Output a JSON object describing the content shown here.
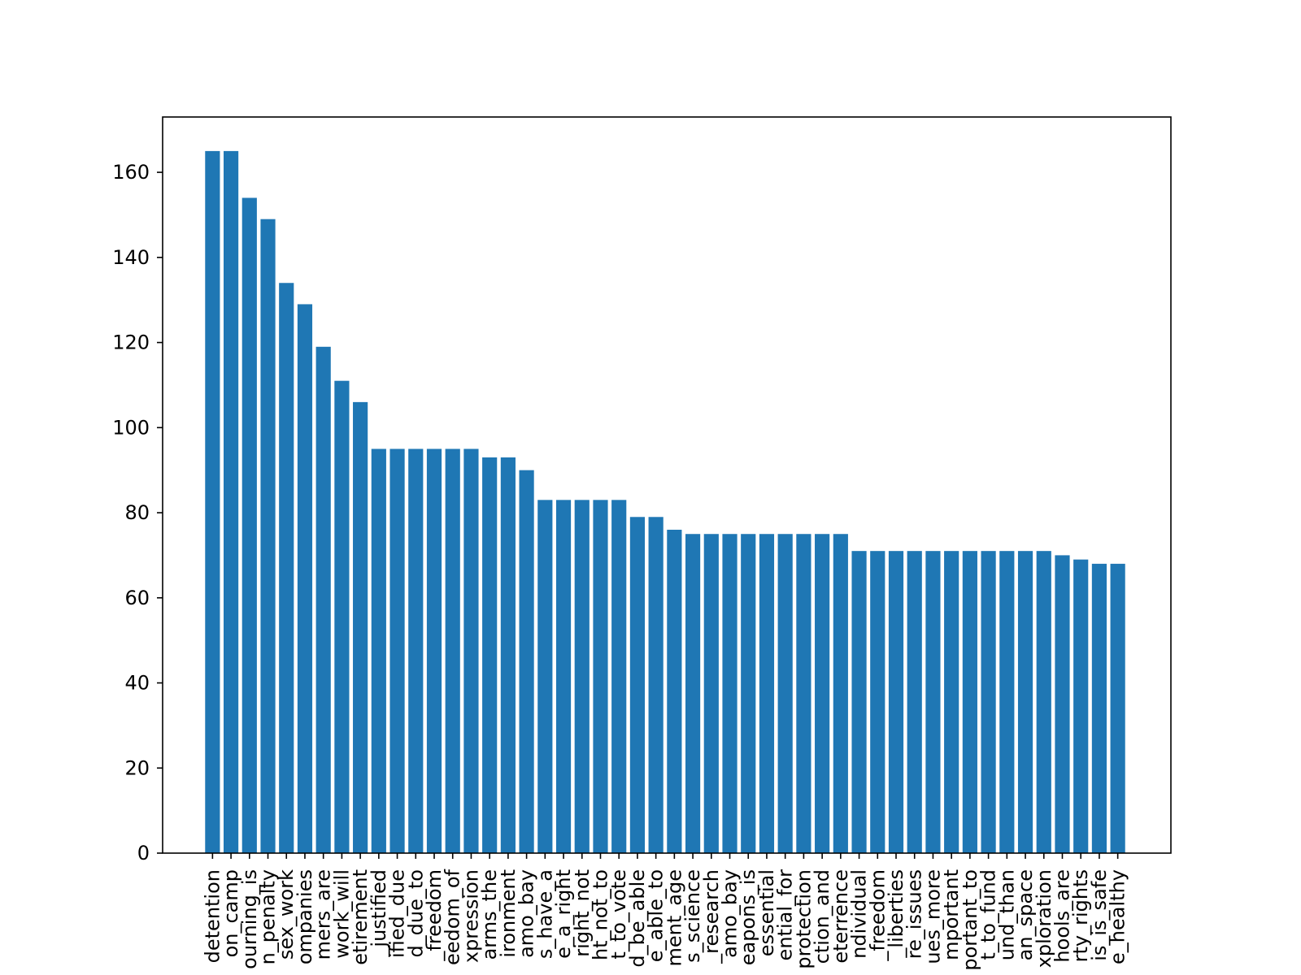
{
  "chart_data": {
    "type": "bar",
    "title": "",
    "xlabel": "",
    "ylabel": "",
    "ylim": [
      0,
      173
    ],
    "yticks": [
      0,
      20,
      40,
      60,
      80,
      100,
      120,
      140,
      160
    ],
    "grid": false,
    "legend": "none",
    "bar_color": "#1f77b4",
    "categories": [
      "detention",
      "on_camp",
      "ourning_is",
      "n_penalty",
      "sex_work",
      "ompanies",
      "mers_are",
      "work_will",
      "etirement",
      "_justified",
      "ified_due",
      "d_due_to",
      "_freedom",
      "eedom_of",
      "xpression",
      "arms_the",
      "ironment",
      "amo_bay",
      "s_have_a",
      "e_a_right",
      "right_not",
      "ht_not_to",
      "t_to_vote",
      "d_be_able",
      "e_able_to",
      "ment_age",
      "s_science",
      "_research",
      "amo_bay",
      "eapons_is",
      "essential",
      "ential_for",
      "protection",
      "ction_and",
      "eterrence",
      "ndividual",
      "_freedom",
      "_liberties",
      "re_issues",
      "ues_more",
      "mportant",
      "portant_to",
      "t_to_fund",
      "und_than",
      "an_space",
      "xploration",
      "hools_are",
      "rty_rights",
      "is_is_safe",
      "e_healthy"
    ],
    "values": [
      165,
      165,
      154,
      149,
      134,
      129,
      119,
      111,
      106,
      95,
      95,
      95,
      95,
      95,
      95,
      93,
      93,
      90,
      83,
      83,
      83,
      83,
      83,
      79,
      79,
      76,
      75,
      75,
      75,
      75,
      75,
      75,
      75,
      75,
      75,
      71,
      71,
      71,
      71,
      71,
      71,
      71,
      71,
      71,
      71,
      71,
      70,
      69,
      68,
      68
    ]
  }
}
